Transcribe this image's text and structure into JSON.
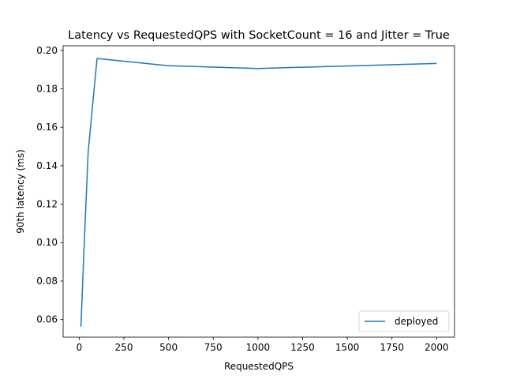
{
  "chart_data": {
    "type": "line",
    "title": "Latency vs RequestedQPS with SocketCount = 16 and Jitter = True",
    "xlabel": "RequestedQPS",
    "ylabel": "90th latency (ms)",
    "xlim": [
      -90,
      2100
    ],
    "ylim": [
      0.0508,
      0.2024
    ],
    "xticks": [
      0,
      250,
      500,
      750,
      1000,
      1250,
      1500,
      1750,
      2000
    ],
    "xtick_labels": [
      "0",
      "250",
      "500",
      "750",
      "1000",
      "1250",
      "1500",
      "1750",
      "2000"
    ],
    "yticks": [
      0.06,
      0.08,
      0.1,
      0.12,
      0.14,
      0.16,
      0.18,
      0.2
    ],
    "ytick_labels": [
      "0.06",
      "0.08",
      "0.10",
      "0.12",
      "0.14",
      "0.16",
      "0.18",
      "0.20"
    ],
    "grid": false,
    "legend_position": "lower right",
    "series": [
      {
        "name": "deployed",
        "color": "#1f77b4",
        "x": [
          10,
          25,
          50,
          100,
          500,
          1000,
          2000
        ],
        "y": [
          0.0563,
          0.092,
          0.147,
          0.1958,
          0.192,
          0.1906,
          0.1932
        ]
      }
    ]
  }
}
